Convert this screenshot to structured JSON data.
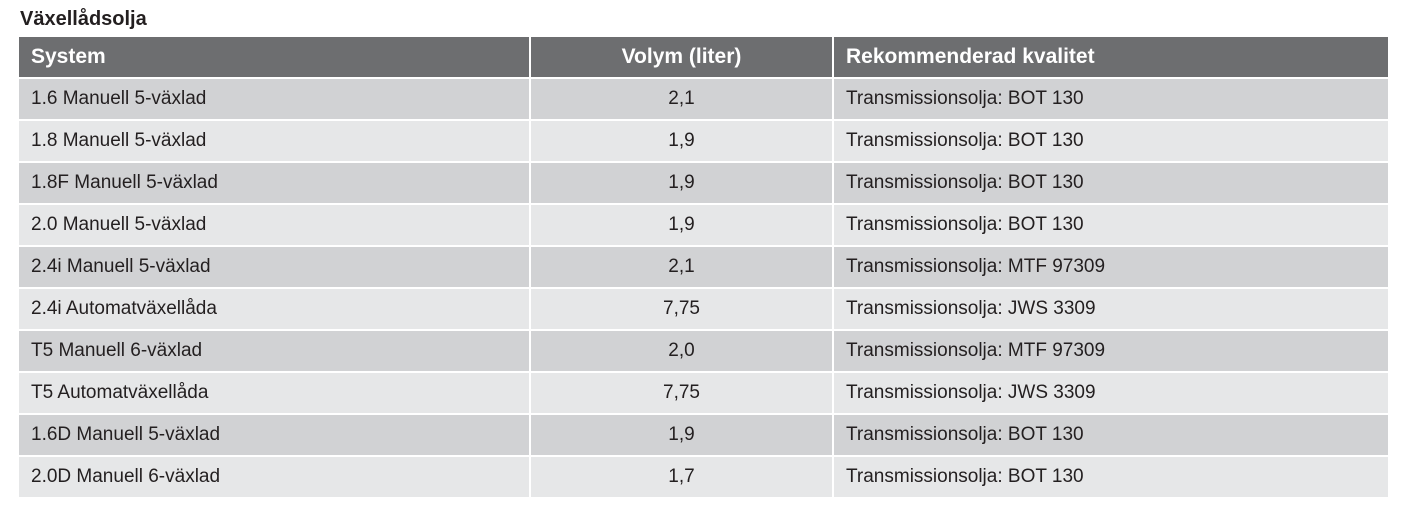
{
  "title": "Växellådsolja",
  "headers": [
    "System",
    "Volym (liter)",
    "Rekommenderad kvalitet"
  ],
  "rows": [
    [
      "1.6 Manuell 5-växlad",
      "2,1",
      "Transmissionsolja: BOT 130"
    ],
    [
      "1.8 Manuell 5-växlad",
      "1,9",
      "Transmissionsolja: BOT 130"
    ],
    [
      "1.8F Manuell 5-växlad",
      "1,9",
      "Transmissionsolja: BOT 130"
    ],
    [
      "2.0 Manuell 5-växlad",
      "1,9",
      "Transmissionsolja: BOT 130"
    ],
    [
      "2.4i Manuell 5-växlad",
      "2,1",
      "Transmissionsolja: MTF 97309"
    ],
    [
      "2.4i Automatväxellåda",
      "7,75",
      "Transmissionsolja: JWS 3309"
    ],
    [
      "T5 Manuell 6-växlad",
      "2,0",
      "Transmissionsolja: MTF 97309"
    ],
    [
      "T5 Automatväxellåda",
      "7,75",
      "Transmissionsolja: JWS 3309"
    ],
    [
      "1.6D Manuell 5-växlad",
      "1,9",
      "Transmissionsolja: BOT 130"
    ],
    [
      "2.0D Manuell 6-växlad",
      "1,7",
      "Transmissionsolja: BOT 130"
    ]
  ]
}
